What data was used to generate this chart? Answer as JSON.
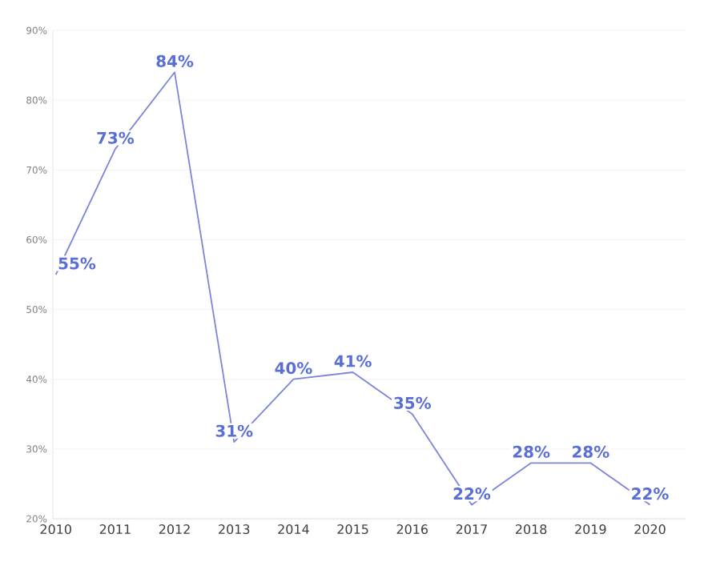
{
  "chart_data": {
    "type": "line",
    "categories": [
      "2010",
      "2011",
      "2012",
      "2013",
      "2014",
      "2015",
      "2016",
      "2017",
      "2018",
      "2019",
      "2020"
    ],
    "series": [
      {
        "color": "#7b86d9",
        "values": [
          55,
          73,
          84,
          31,
          40,
          41,
          35,
          22,
          28,
          28,
          22
        ]
      }
    ],
    "ylim": [
      20,
      90
    ],
    "yticks": [
      {
        "value": 20,
        "label": "20%"
      },
      {
        "value": 30,
        "label": "30%"
      },
      {
        "value": 40,
        "label": "40%"
      },
      {
        "value": 50,
        "label": "50%"
      },
      {
        "value": 60,
        "label": "60%"
      },
      {
        "value": 70,
        "label": "70%"
      },
      {
        "value": 80,
        "label": "80%"
      },
      {
        "value": 90,
        "label": "90%"
      }
    ],
    "value_labels": [
      "55%",
      "73%",
      "84%",
      "31%",
      "40%",
      "41%",
      "35%",
      "22%",
      "28%",
      "28%",
      "22%"
    ],
    "grid": "y",
    "marker": "none",
    "line_style": "solid"
  }
}
